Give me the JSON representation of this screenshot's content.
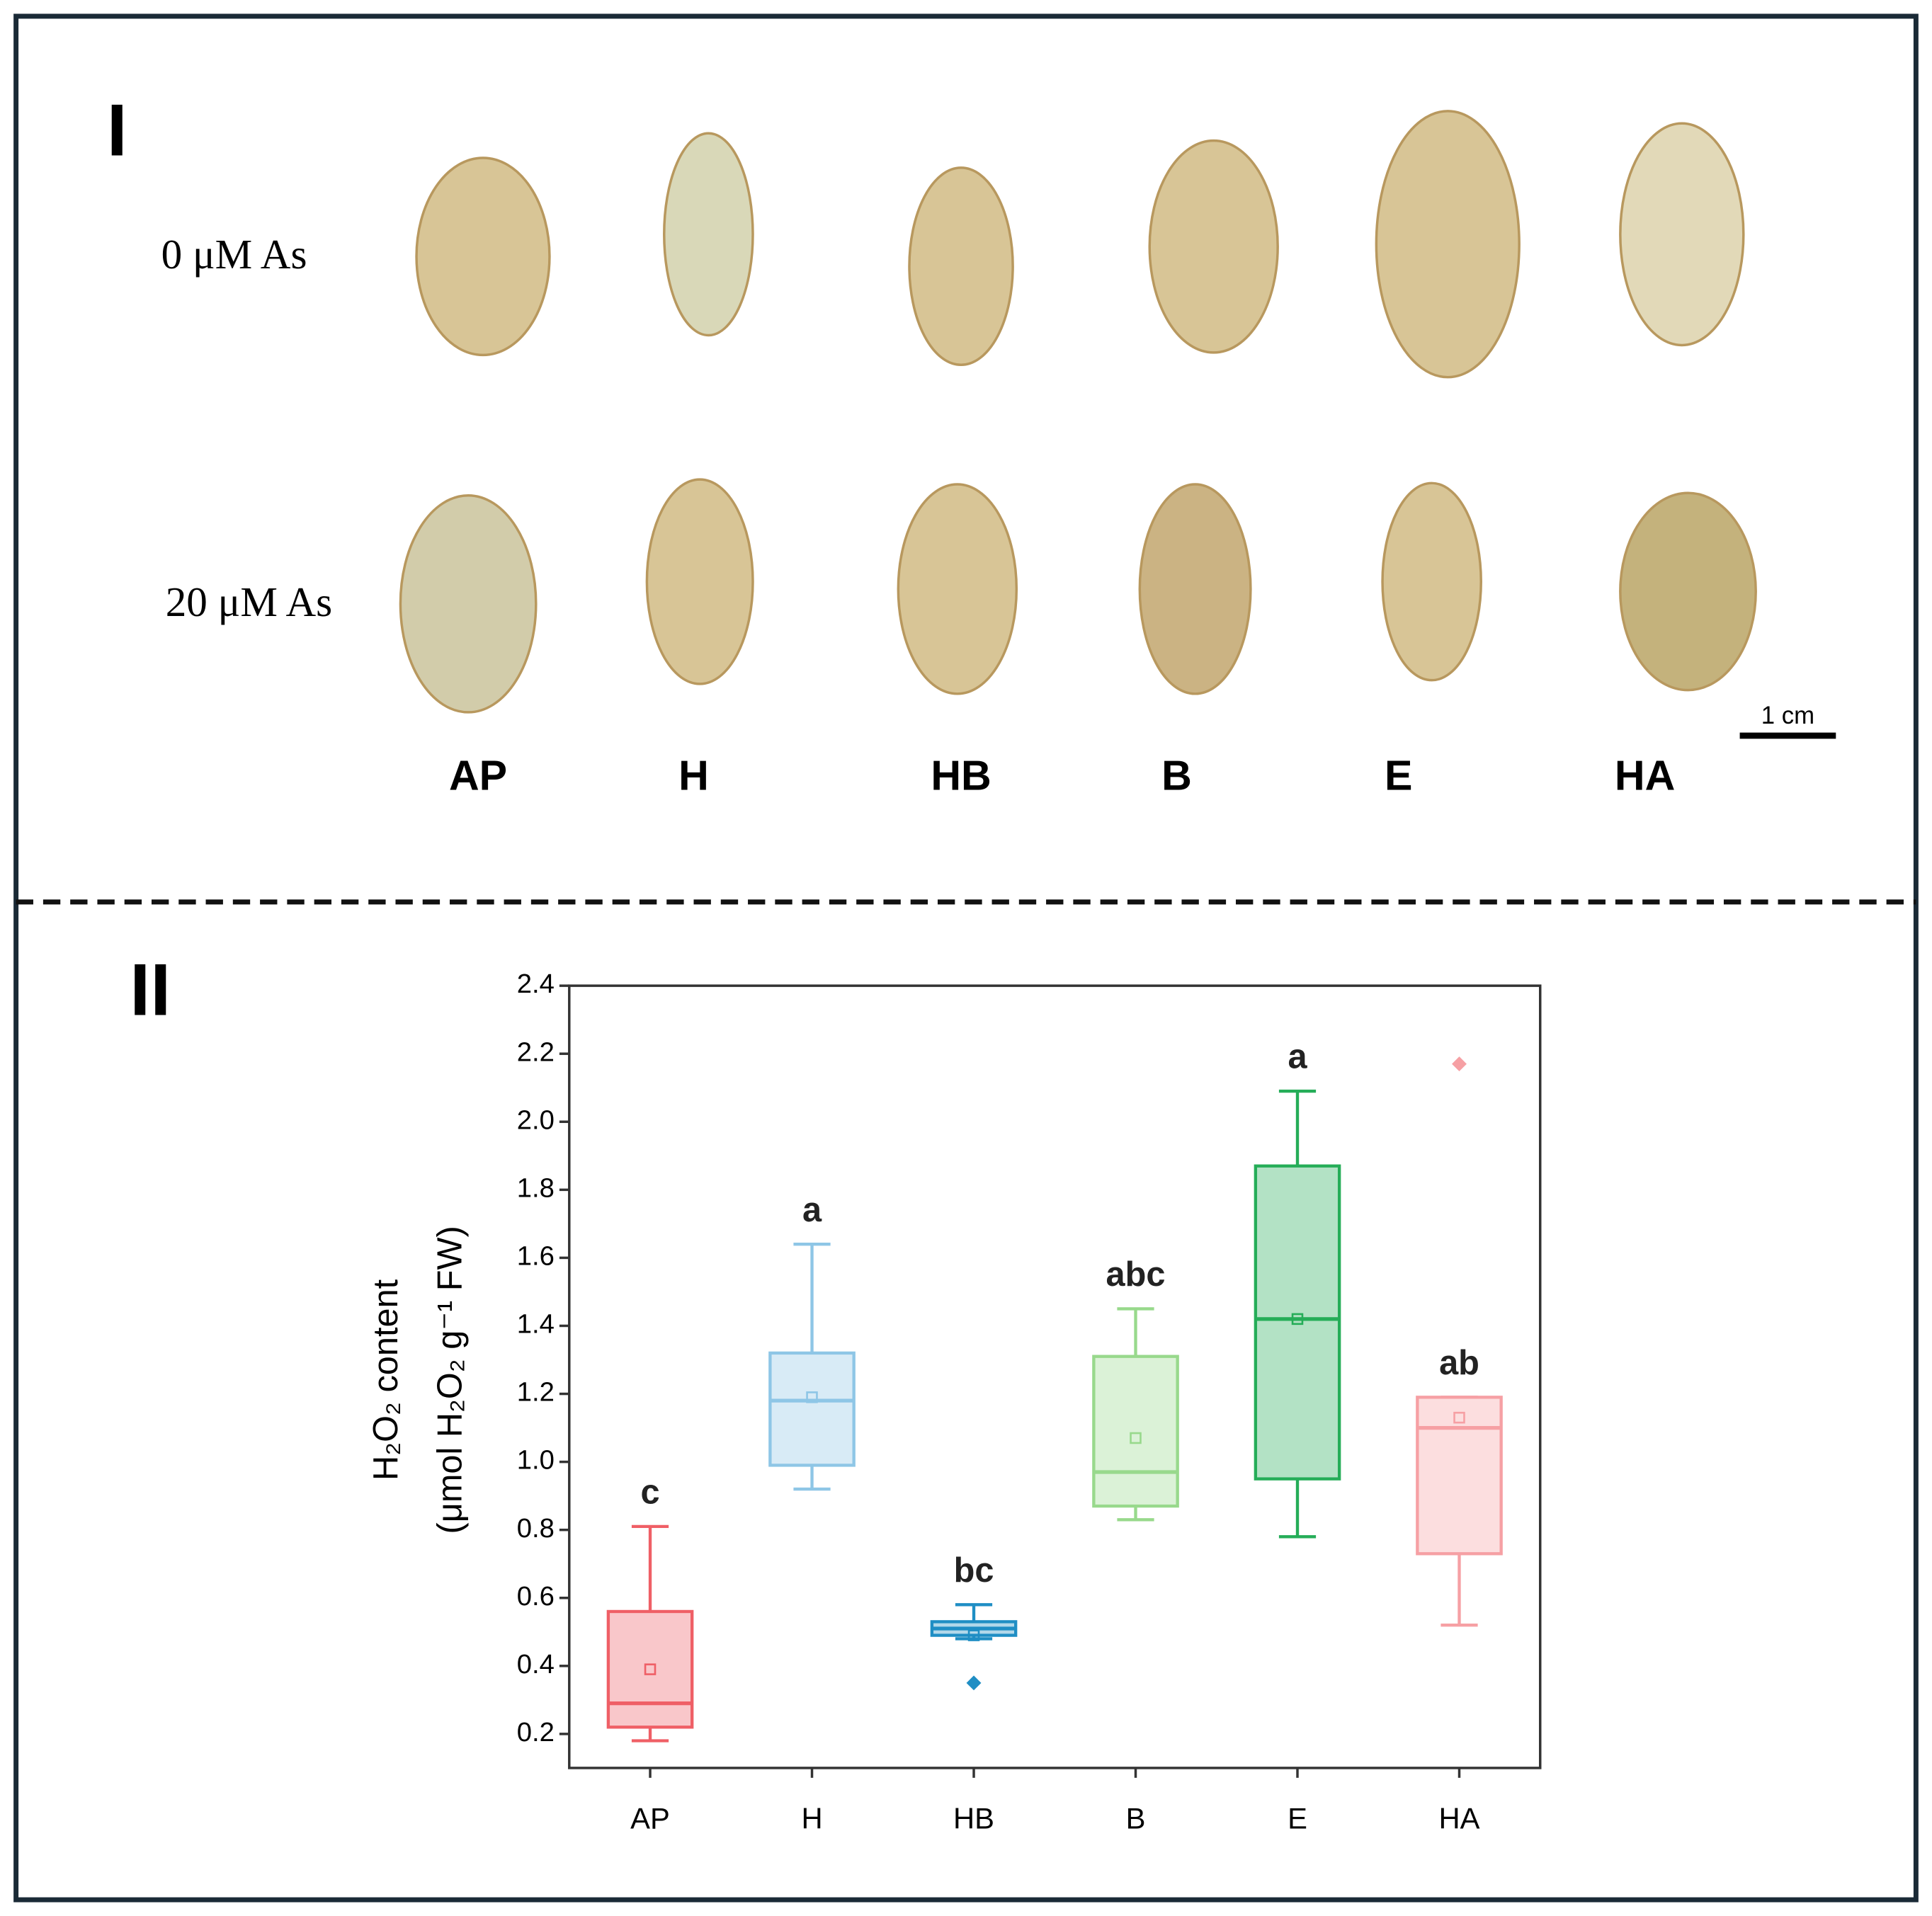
{
  "panel_I": {
    "label": "I",
    "rows": [
      "0 μM As",
      "20 μM As"
    ],
    "categories": [
      "AP",
      "H",
      "HB",
      "B",
      "E",
      "HA"
    ],
    "scale_bar": "1 cm"
  },
  "chart_data": {
    "type": "box",
    "panel_label": "II",
    "y_label": [
      "H₂O₂ content",
      "(μmol H₂O₂ g⁻¹ FW)"
    ],
    "categories": [
      "AP",
      "H",
      "HB",
      "B",
      "E",
      "HA"
    ],
    "ylim": [
      0.1,
      2.4
    ],
    "yticks": [
      0.2,
      0.4,
      0.6,
      0.8,
      {
        "value": 1,
        "label": "1.0"
      },
      1.2,
      1.4,
      1.6,
      1.8,
      {
        "value": 2,
        "label": "2.0"
      },
      2.2,
      2.4
    ],
    "boxes": [
      {
        "color": "#ef5f66",
        "whisker_low": 0.18,
        "q1": 0.22,
        "median": 0.29,
        "q3": 0.56,
        "whisker_high": 0.81,
        "mean": 0.39,
        "outliers": [],
        "letter": "c"
      },
      {
        "color": "#8ec6e6",
        "whisker_low": 0.92,
        "q1": 0.99,
        "median": 1.18,
        "q3": 1.32,
        "whisker_high": 1.64,
        "mean": 1.19,
        "outliers": [],
        "letter": "a"
      },
      {
        "color": "#1f8ec4",
        "whisker_low": 0.48,
        "q1": 0.49,
        "median": 0.51,
        "q3": 0.53,
        "whisker_high": 0.58,
        "mean": 0.49,
        "outliers": [
          0.35
        ],
        "letter": "bc"
      },
      {
        "color": "#98d98c",
        "whisker_low": 0.83,
        "q1": 0.87,
        "median": 0.97,
        "q3": 1.31,
        "whisker_high": 1.45,
        "mean": 1.07,
        "outliers": [],
        "letter": "abc"
      },
      {
        "color": "#25ad58",
        "whisker_low": 0.78,
        "q1": 0.95,
        "median": 1.42,
        "q3": 1.87,
        "whisker_high": 2.09,
        "mean": 1.42,
        "outliers": [],
        "letter": "a"
      },
      {
        "color": "#f6a0a4",
        "whisker_low": 0.52,
        "q1": 0.73,
        "median": 1.1,
        "q3": 1.19,
        "whisker_high": 1.19,
        "mean": 1.13,
        "outliers": [
          2.17
        ],
        "letter": "ab"
      }
    ]
  }
}
